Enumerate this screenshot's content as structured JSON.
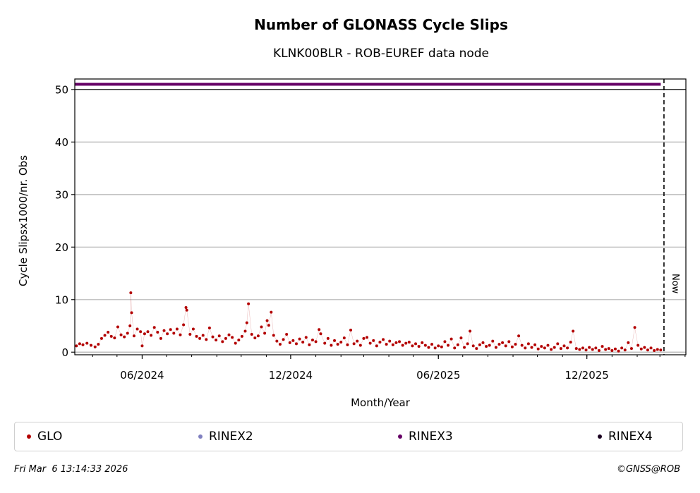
{
  "colors": {
    "GLO": "#b30000",
    "RINEX2": "#8080c0",
    "RINEX3": "#660066",
    "RINEX4": "#1a0020"
  },
  "chart_data": {
    "type": "scatter",
    "title": "Number of GLONASS Cycle Slips",
    "subtitle": "KLNK00BLR - ROB-EUREF data node",
    "xlabel": "Month/Year",
    "ylabel": "Cycle Slipsx1000/nr. Obs",
    "x_range": [
      "2024-03-10",
      "2026-04-02"
    ],
    "ylim": [
      -0.5,
      52
    ],
    "y_ticks": [
      0,
      10,
      20,
      30,
      40,
      50
    ],
    "x_ticks": [
      {
        "date": "2024-06-01",
        "label": "06/2024"
      },
      {
        "date": "2024-12-01",
        "label": "12/2024"
      },
      {
        "date": "2025-06-01",
        "label": "06/2025"
      },
      {
        "date": "2025-12-01",
        "label": "12/2025"
      }
    ],
    "grid": "horizontal",
    "now_marker": {
      "date": "2026-03-06",
      "label": "Now"
    },
    "series": [
      {
        "name": "GLO",
        "color_key": "GLO",
        "points": [
          [
            "2024-03-12",
            1.2
          ],
          [
            "2024-03-16",
            1.6
          ],
          [
            "2024-03-20",
            1.4
          ],
          [
            "2024-03-25",
            1.7
          ],
          [
            "2024-03-30",
            1.3
          ],
          [
            "2024-04-04",
            1.0
          ],
          [
            "2024-04-08",
            1.5
          ],
          [
            "2024-04-12",
            2.6
          ],
          [
            "2024-04-16",
            3.2
          ],
          [
            "2024-04-20",
            3.8
          ],
          [
            "2024-04-24",
            3.0
          ],
          [
            "2024-04-28",
            2.7
          ],
          [
            "2024-05-02",
            4.8
          ],
          [
            "2024-05-06",
            3.3
          ],
          [
            "2024-05-10",
            2.9
          ],
          [
            "2024-05-14",
            3.6
          ],
          [
            "2024-05-17",
            5.0
          ],
          [
            "2024-05-18",
            11.3
          ],
          [
            "2024-05-19",
            7.5
          ],
          [
            "2024-05-22",
            3.1
          ],
          [
            "2024-05-26",
            4.4
          ],
          [
            "2024-05-30",
            3.9
          ],
          [
            "2024-06-01",
            1.2
          ],
          [
            "2024-06-04",
            3.5
          ],
          [
            "2024-06-08",
            3.9
          ],
          [
            "2024-06-12",
            3.2
          ],
          [
            "2024-06-16",
            4.7
          ],
          [
            "2024-06-20",
            3.8
          ],
          [
            "2024-06-24",
            2.6
          ],
          [
            "2024-06-28",
            4.1
          ],
          [
            "2024-07-02",
            3.5
          ],
          [
            "2024-07-06",
            4.3
          ],
          [
            "2024-07-10",
            3.6
          ],
          [
            "2024-07-14",
            4.4
          ],
          [
            "2024-07-18",
            3.3
          ],
          [
            "2024-07-22",
            5.2
          ],
          [
            "2024-07-25",
            8.5
          ],
          [
            "2024-07-26",
            8.0
          ],
          [
            "2024-07-30",
            3.4
          ],
          [
            "2024-08-03",
            4.4
          ],
          [
            "2024-08-07",
            3.0
          ],
          [
            "2024-08-11",
            2.6
          ],
          [
            "2024-08-15",
            3.2
          ],
          [
            "2024-08-19",
            2.4
          ],
          [
            "2024-08-23",
            4.6
          ],
          [
            "2024-08-27",
            2.9
          ],
          [
            "2024-08-31",
            2.3
          ],
          [
            "2024-09-04",
            3.1
          ],
          [
            "2024-09-08",
            2.0
          ],
          [
            "2024-09-12",
            2.6
          ],
          [
            "2024-09-16",
            3.3
          ],
          [
            "2024-09-20",
            2.8
          ],
          [
            "2024-09-24",
            1.7
          ],
          [
            "2024-09-28",
            2.3
          ],
          [
            "2024-10-02",
            3.0
          ],
          [
            "2024-10-06",
            4.0
          ],
          [
            "2024-10-08",
            5.6
          ],
          [
            "2024-10-10",
            9.2
          ],
          [
            "2024-10-14",
            3.4
          ],
          [
            "2024-10-18",
            2.7
          ],
          [
            "2024-10-22",
            3.1
          ],
          [
            "2024-10-26",
            4.8
          ],
          [
            "2024-10-30",
            3.6
          ],
          [
            "2024-11-02",
            6.0
          ],
          [
            "2024-11-04",
            5.1
          ],
          [
            "2024-11-07",
            7.6
          ],
          [
            "2024-11-10",
            3.2
          ],
          [
            "2024-11-14",
            2.1
          ],
          [
            "2024-11-18",
            1.5
          ],
          [
            "2024-11-22",
            2.4
          ],
          [
            "2024-11-26",
            3.4
          ],
          [
            "2024-11-30",
            1.8
          ],
          [
            "2024-12-04",
            2.2
          ],
          [
            "2024-12-08",
            1.6
          ],
          [
            "2024-12-12",
            2.5
          ],
          [
            "2024-12-16",
            1.9
          ],
          [
            "2024-12-20",
            2.8
          ],
          [
            "2024-12-24",
            1.4
          ],
          [
            "2024-12-28",
            2.3
          ],
          [
            "2025-01-01",
            2.0
          ],
          [
            "2025-01-05",
            4.3
          ],
          [
            "2025-01-07",
            3.5
          ],
          [
            "2025-01-12",
            1.7
          ],
          [
            "2025-01-16",
            2.6
          ],
          [
            "2025-01-20",
            1.3
          ],
          [
            "2025-01-24",
            2.2
          ],
          [
            "2025-01-28",
            1.5
          ],
          [
            "2025-02-01",
            1.9
          ],
          [
            "2025-02-05",
            2.7
          ],
          [
            "2025-02-09",
            1.4
          ],
          [
            "2025-02-13",
            4.2
          ],
          [
            "2025-02-17",
            1.6
          ],
          [
            "2025-02-21",
            2.1
          ],
          [
            "2025-02-25",
            1.3
          ],
          [
            "2025-03-01",
            2.6
          ],
          [
            "2025-03-05",
            2.8
          ],
          [
            "2025-03-09",
            1.7
          ],
          [
            "2025-03-13",
            2.2
          ],
          [
            "2025-03-17",
            1.2
          ],
          [
            "2025-03-21",
            1.9
          ],
          [
            "2025-03-25",
            2.4
          ],
          [
            "2025-03-29",
            1.5
          ],
          [
            "2025-04-02",
            2.1
          ],
          [
            "2025-04-06",
            1.4
          ],
          [
            "2025-04-10",
            1.8
          ],
          [
            "2025-04-14",
            2.0
          ],
          [
            "2025-04-18",
            1.3
          ],
          [
            "2025-04-22",
            1.7
          ],
          [
            "2025-04-26",
            1.9
          ],
          [
            "2025-04-30",
            1.2
          ],
          [
            "2025-05-04",
            1.6
          ],
          [
            "2025-05-08",
            1.1
          ],
          [
            "2025-05-12",
            1.8
          ],
          [
            "2025-05-16",
            1.3
          ],
          [
            "2025-05-20",
            0.9
          ],
          [
            "2025-05-24",
            1.5
          ],
          [
            "2025-05-28",
            0.8
          ],
          [
            "2025-06-01",
            1.2
          ],
          [
            "2025-06-05",
            1.0
          ],
          [
            "2025-06-09",
            2.0
          ],
          [
            "2025-06-13",
            1.3
          ],
          [
            "2025-06-17",
            2.5
          ],
          [
            "2025-06-21",
            0.8
          ],
          [
            "2025-06-25",
            1.4
          ],
          [
            "2025-06-29",
            2.7
          ],
          [
            "2025-07-03",
            0.9
          ],
          [
            "2025-07-07",
            1.6
          ],
          [
            "2025-07-10",
            4.0
          ],
          [
            "2025-07-14",
            1.2
          ],
          [
            "2025-07-18",
            0.7
          ],
          [
            "2025-07-22",
            1.4
          ],
          [
            "2025-07-26",
            1.8
          ],
          [
            "2025-07-30",
            1.1
          ],
          [
            "2025-08-03",
            1.3
          ],
          [
            "2025-08-07",
            2.1
          ],
          [
            "2025-08-11",
            0.9
          ],
          [
            "2025-08-15",
            1.5
          ],
          [
            "2025-08-19",
            1.8
          ],
          [
            "2025-08-23",
            1.2
          ],
          [
            "2025-08-27",
            2.0
          ],
          [
            "2025-08-31",
            1.0
          ],
          [
            "2025-09-04",
            1.5
          ],
          [
            "2025-09-08",
            3.1
          ],
          [
            "2025-09-12",
            1.3
          ],
          [
            "2025-09-16",
            0.8
          ],
          [
            "2025-09-20",
            1.6
          ],
          [
            "2025-09-24",
            0.9
          ],
          [
            "2025-09-28",
            1.4
          ],
          [
            "2025-10-02",
            0.6
          ],
          [
            "2025-10-06",
            1.1
          ],
          [
            "2025-10-10",
            0.8
          ],
          [
            "2025-10-14",
            1.3
          ],
          [
            "2025-10-18",
            0.5
          ],
          [
            "2025-10-22",
            0.9
          ],
          [
            "2025-10-26",
            1.6
          ],
          [
            "2025-10-30",
            0.7
          ],
          [
            "2025-11-03",
            1.2
          ],
          [
            "2025-11-07",
            0.8
          ],
          [
            "2025-11-11",
            1.9
          ],
          [
            "2025-11-14",
            4.0
          ],
          [
            "2025-11-18",
            0.7
          ],
          [
            "2025-11-22",
            0.5
          ],
          [
            "2025-11-26",
            0.8
          ],
          [
            "2025-11-30",
            0.4
          ],
          [
            "2025-12-04",
            0.9
          ],
          [
            "2025-12-08",
            0.5
          ],
          [
            "2025-12-12",
            0.8
          ],
          [
            "2025-12-16",
            0.3
          ],
          [
            "2025-12-20",
            1.1
          ],
          [
            "2025-12-24",
            0.5
          ],
          [
            "2025-12-28",
            0.7
          ],
          [
            "2026-01-01",
            0.3
          ],
          [
            "2026-01-05",
            0.6
          ],
          [
            "2026-01-09",
            0.2
          ],
          [
            "2026-01-13",
            0.8
          ],
          [
            "2026-01-17",
            0.4
          ],
          [
            "2026-01-21",
            1.8
          ],
          [
            "2026-01-25",
            0.7
          ],
          [
            "2026-01-29",
            4.7
          ],
          [
            "2026-02-02",
            1.3
          ],
          [
            "2026-02-06",
            0.6
          ],
          [
            "2026-02-10",
            0.9
          ],
          [
            "2026-02-14",
            0.4
          ],
          [
            "2026-02-18",
            0.8
          ],
          [
            "2026-02-22",
            0.3
          ],
          [
            "2026-02-26",
            0.5
          ],
          [
            "2026-03-02",
            0.4
          ]
        ]
      },
      {
        "name": "RINEX3",
        "color_key": "RINEX3",
        "constant_value": 51,
        "x_from": "2024-03-10",
        "x_to": "2026-03-02"
      }
    ]
  },
  "legend": [
    {
      "label": "GLO",
      "color_key": "GLO"
    },
    {
      "label": "RINEX2",
      "color_key": "RINEX2"
    },
    {
      "label": "RINEX3",
      "color_key": "RINEX3"
    },
    {
      "label": "RINEX4",
      "color_key": "RINEX4"
    }
  ],
  "footer": {
    "timestamp": "Fri Mar  6 13:14:33 2026",
    "credit": "©GNSS@ROB"
  }
}
